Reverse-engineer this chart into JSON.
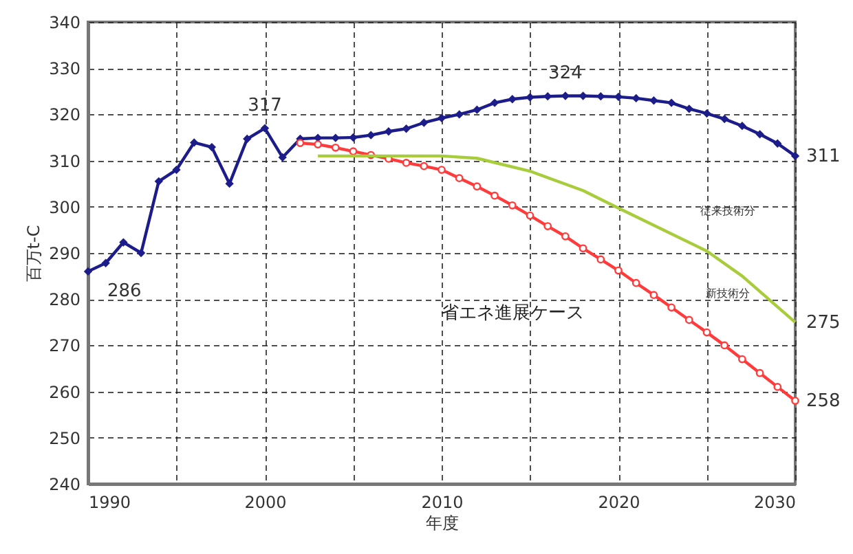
{
  "chart_data": {
    "type": "line",
    "xlabel": "年度",
    "ylabel": "百万t-C",
    "xlim": [
      1990,
      2030
    ],
    "ylim": [
      240,
      340
    ],
    "xticks": [
      1990,
      {
        "value": 1995,
        "label": null
      },
      2000,
      {
        "value": 2005,
        "label": null
      },
      2010,
      {
        "value": 2015,
        "label": null
      },
      2020,
      {
        "value": 2025,
        "label": null
      },
      2030
    ],
    "yticks": [
      240,
      250,
      260,
      270,
      280,
      290,
      300,
      310,
      320,
      330,
      340
    ],
    "grid": true,
    "series": [
      {
        "color": "#1c1c8a",
        "marker": "diamond",
        "x": [
          1990,
          1991,
          1992,
          1993,
          1994,
          1995,
          1996,
          1997,
          1998,
          1999,
          2000,
          2001,
          2002,
          2003,
          2004,
          2005,
          2006,
          2007,
          2008,
          2009,
          2010,
          2011,
          2012,
          2013,
          2014,
          2015,
          2016,
          2017,
          2018,
          2019,
          2020,
          2021,
          2022,
          2023,
          2024,
          2025,
          2026,
          2027,
          2028,
          2029,
          2030
        ],
        "values": [
          286,
          287.8,
          292.3,
          290,
          305.5,
          308,
          313.9,
          312.9,
          305,
          314.7,
          317,
          310.7,
          314.7,
          314.9,
          314.9,
          315,
          315.5,
          316.3,
          316.9,
          318.2,
          319.2,
          320,
          321,
          322.5,
          323.3,
          323.7,
          323.9,
          324,
          324,
          323.9,
          323.8,
          323.5,
          323,
          322.5,
          321.2,
          320.2,
          319,
          317.5,
          315.7,
          313.7,
          311
        ]
      },
      {
        "name": "省エネ進展ケース",
        "color": "#ff3b3b",
        "marker": "circle",
        "x": [
          2002,
          2003,
          2004,
          2005,
          2006,
          2007,
          2008,
          2009,
          2010,
          2011,
          2012,
          2013,
          2014,
          2015,
          2016,
          2017,
          2018,
          2019,
          2020,
          2021,
          2022,
          2023,
          2024,
          2025,
          2026,
          2027,
          2028,
          2029,
          2030
        ],
        "values": [
          313.8,
          313.5,
          312.8,
          312,
          311.2,
          310.4,
          309.5,
          308.8,
          308,
          306.2,
          304.4,
          302.4,
          300.3,
          298.1,
          295.8,
          293.6,
          291,
          288.6,
          286.2,
          283.5,
          280.9,
          278.2,
          275.5,
          272.8,
          270,
          267,
          264,
          261,
          258
        ]
      },
      {
        "color": "#a8cc3c",
        "marker": "none",
        "x": [
          2003,
          2005,
          2008,
          2010,
          2012,
          2015,
          2018,
          2020,
          2022,
          2025,
          2027,
          2030
        ],
        "values": [
          311,
          311,
          311,
          311,
          310.5,
          307.7,
          303.5,
          299.7,
          296,
          290.4,
          285,
          275
        ]
      }
    ],
    "annotations": [
      {
        "text": "286",
        "x": 1990,
        "y": 286
      },
      {
        "text": "317",
        "x": 2000,
        "y": 317
      },
      {
        "text": "324",
        "x": 2017,
        "y": 324
      },
      {
        "text": "311",
        "x": 2030,
        "y": 311
      },
      {
        "text": "275",
        "x": 2030,
        "y": 275
      },
      {
        "text": "258",
        "x": 2030,
        "y": 258
      },
      "従来技術分",
      "新技術分"
    ]
  }
}
